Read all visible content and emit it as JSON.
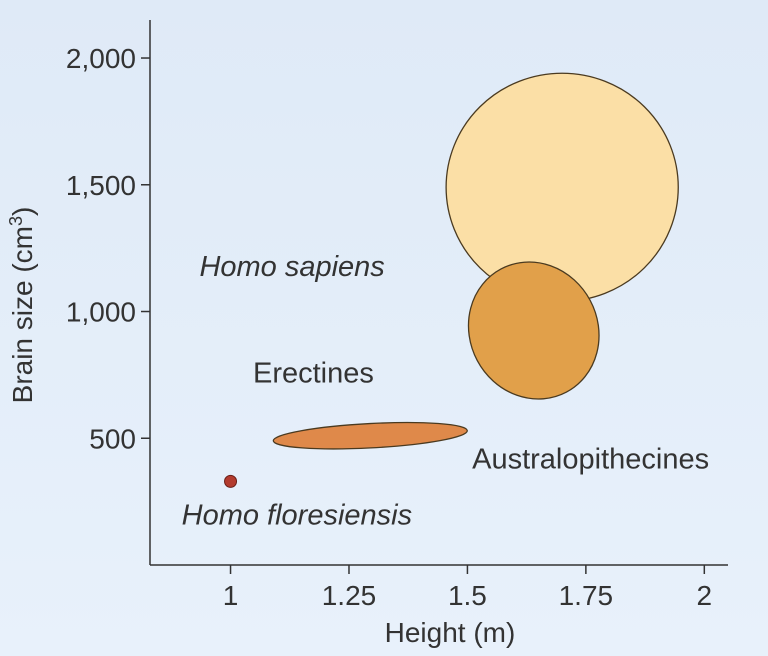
{
  "chart_data": {
    "type": "scatter",
    "xlabel": "Height (m)",
    "ylabel_main": "Brain size (cm",
    "ylabel_sup": "3",
    "ylabel_end": ")",
    "xlim": [
      0.83,
      2.05
    ],
    "ylim": [
      0,
      2150
    ],
    "x_ticks": [
      {
        "value": 1,
        "label": "1"
      },
      {
        "value": 1.25,
        "label": "1.25"
      },
      {
        "value": 1.5,
        "label": "1.5"
      },
      {
        "value": 1.75,
        "label": "1.75"
      },
      {
        "value": 2,
        "label": "2"
      }
    ],
    "y_ticks": [
      {
        "value": 500,
        "label": "500"
      },
      {
        "value": 1000,
        "label": "1,000"
      },
      {
        "value": 1500,
        "label": "1,500"
      },
      {
        "value": 2000,
        "label": "2,000"
      }
    ],
    "grid": false,
    "background": "#e4eef9",
    "regions": [
      {
        "label": "Homo sapiens",
        "italic": true,
        "color": "#fbdfa6",
        "stroke": "#4a3a20",
        "x_center": 1.7,
        "y_center": 1490,
        "x_radius": 0.245,
        "y_radius": 450,
        "rotation_deg": 0,
        "label_x": 1.13,
        "label_y": 1140,
        "label_anchor": "middle"
      },
      {
        "label": "Erectines",
        "italic": false,
        "color": "#e1a04a",
        "stroke": "#4a3a20",
        "x_center": 1.64,
        "y_center": 925,
        "x_radius": 0.135,
        "y_radius": 275,
        "rotation_deg": -28,
        "label_x": 1.175,
        "label_y": 720,
        "label_anchor": "middle"
      },
      {
        "label": "Australopithecines",
        "italic": false,
        "color": "#df894a",
        "stroke": "#4a3a20",
        "x_center": 1.295,
        "y_center": 510,
        "x_radius": 0.205,
        "y_radius": 48,
        "rotation_deg": -3,
        "label_x": 1.76,
        "label_y": 380,
        "label_anchor": "middle"
      }
    ],
    "points": [
      {
        "label": "Homo floresiensis",
        "italic": true,
        "x": 1.0,
        "y": 330,
        "color": "#b33b2e",
        "label_x": 1.14,
        "label_y": 160,
        "label_anchor": "middle"
      }
    ]
  }
}
